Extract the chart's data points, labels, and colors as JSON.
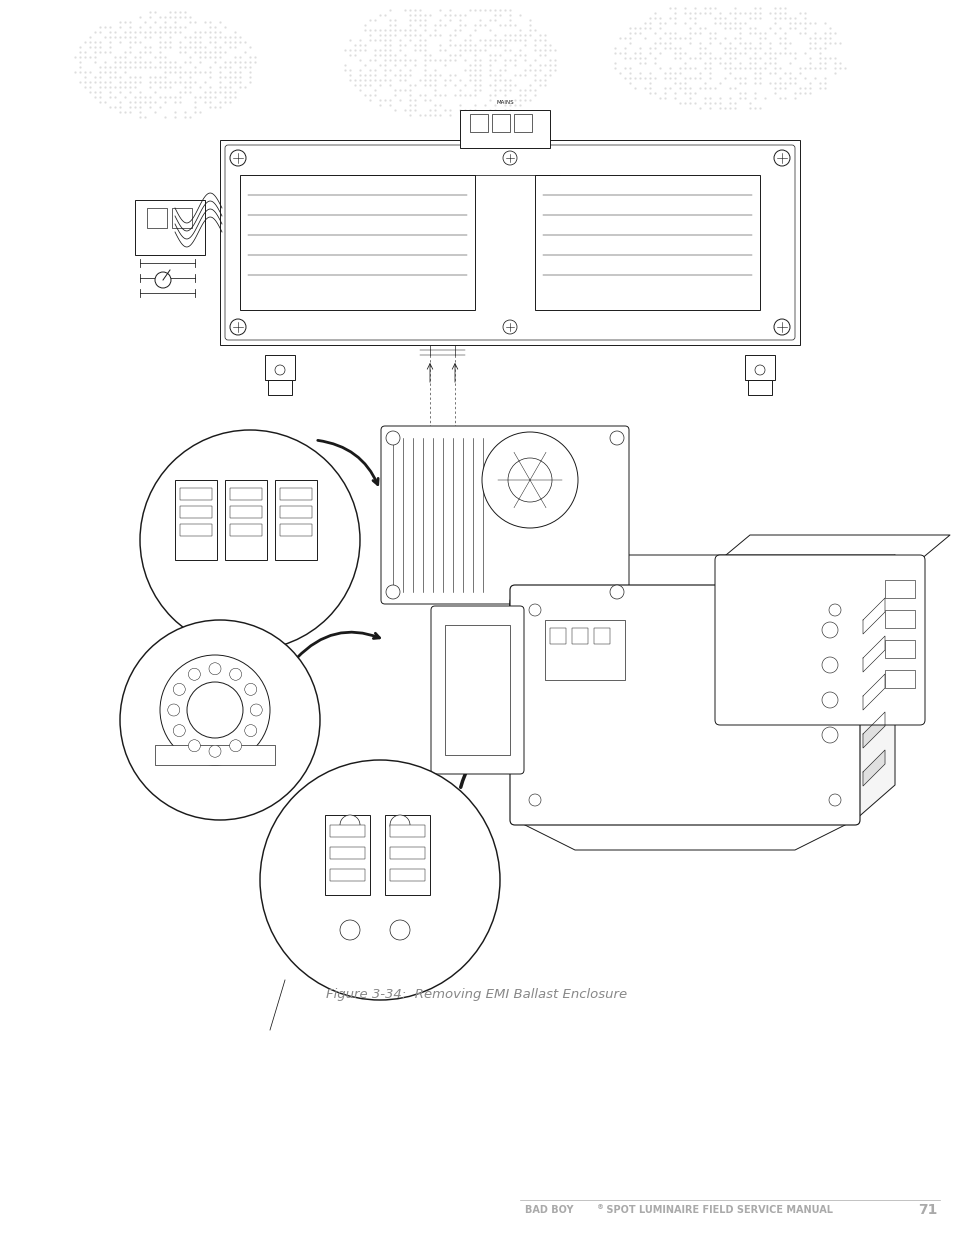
{
  "page_width": 9.54,
  "page_height": 12.35,
  "dpi": 100,
  "background_color": "#ffffff",
  "caption_text": "Figure 3-34:  Removing EMI Ballast Enclosure",
  "caption_fontsize": 9.5,
  "caption_color": "#888888",
  "footer_left": "BAD BOY",
  "footer_sup": "®",
  "footer_right": " SPOT LUMINAIRE FIELD SERVICE MANUAL",
  "footer_page": "71",
  "footer_color": "#aaaaaa",
  "footer_fontsize": 7,
  "drawing_color": "#1a1a1a",
  "line_width": 0.7,
  "watermark_color": "#d8d8d8"
}
